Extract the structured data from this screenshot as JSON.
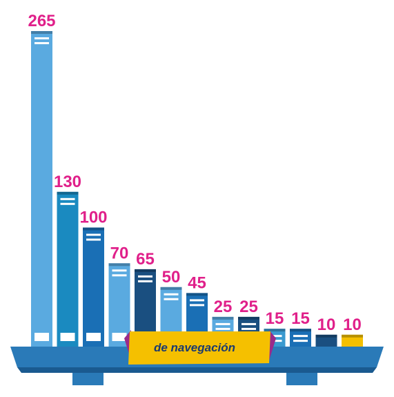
{
  "chart_data": {
    "type": "bar",
    "label": "de navegación",
    "values": [
      265,
      130,
      100,
      70,
      65,
      50,
      45,
      25,
      25,
      15,
      15,
      10,
      10
    ],
    "colors": [
      "#5aaae0",
      "#1a8ac0",
      "#1a6fb5",
      "#5aaae0",
      "#1a4f80",
      "#5aaae0",
      "#1a6fb5",
      "#5aaae0",
      "#1a4f80",
      "#3a9ad0",
      "#1a6fb5",
      "#1a4f80",
      "#f5c000"
    ],
    "label_color": "#e0208a"
  }
}
